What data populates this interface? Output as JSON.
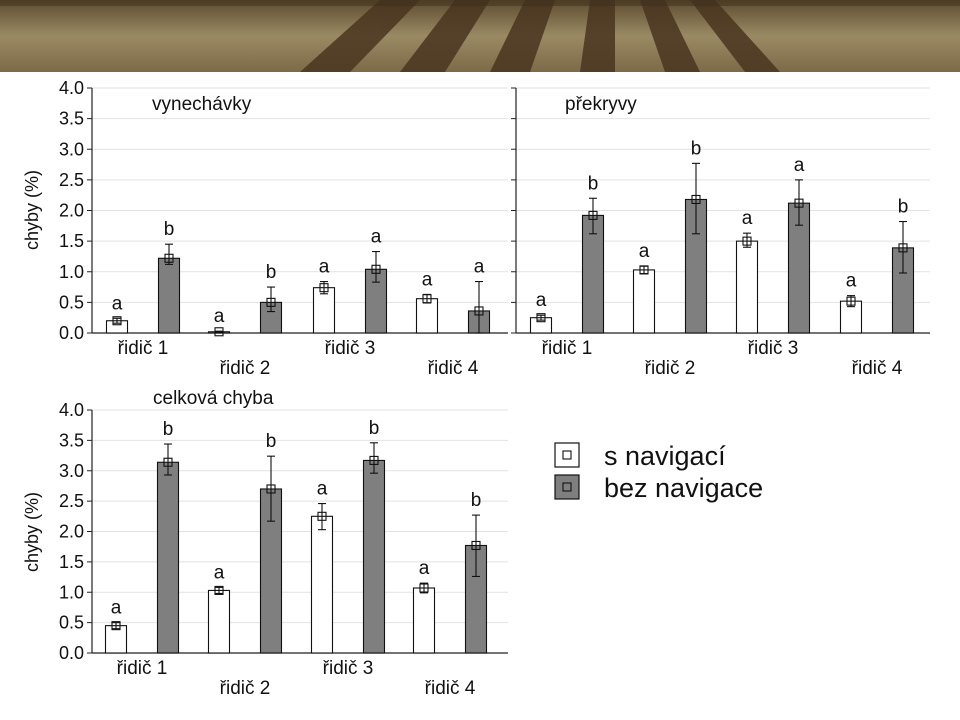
{
  "colors": {
    "with_nav": "#ffffff",
    "without_nav": "#7f7f7f",
    "axis": "#222222",
    "grid": "#e2e2e2",
    "banner_sky": "#8c7a55",
    "banner_field": "#6b4f2c"
  },
  "legend": {
    "with_nav": "s navigací",
    "without_nav": "bez navigace",
    "marker_icon": "square-marker-icon"
  },
  "chart_data": [
    {
      "type": "bar",
      "title": "vynechávky",
      "xlabel": "",
      "ylabel": "chyby (%)",
      "ylim": [
        0,
        4
      ],
      "yticks": [
        "0.0",
        "0.5",
        "1.0",
        "1.5",
        "2.0",
        "2.5",
        "3.0",
        "3.5",
        "4.0"
      ],
      "categories": [
        "řidič 1",
        "řidič 2",
        "řidič 3",
        "řidič 4"
      ],
      "grid": true,
      "series": [
        {
          "name": "s navigací",
          "values": [
            0.2,
            0.02,
            0.74,
            0.56
          ],
          "err_low": [
            0.16,
            0.01,
            0.64,
            0.49
          ],
          "err_high": [
            0.24,
            0.03,
            0.84,
            0.63
          ],
          "labels": [
            "a",
            "a",
            "a",
            "a"
          ]
        },
        {
          "name": "bez navigace",
          "values": [
            1.22,
            0.5,
            1.04,
            0.36
          ],
          "err_low": [
            1.12,
            0.35,
            0.83,
            0.0
          ],
          "err_high": [
            1.45,
            0.75,
            1.33,
            0.84
          ],
          "labels": [
            "b",
            "b",
            "a",
            "a"
          ]
        }
      ]
    },
    {
      "type": "bar",
      "title": "překryvy",
      "xlabel": "",
      "ylabel": "",
      "ylim": [
        0,
        4
      ],
      "categories": [
        "řidič 1",
        "řidič 2",
        "řidič 3",
        "řidič 4"
      ],
      "grid": true,
      "series": [
        {
          "name": "s navigací",
          "values": [
            0.25,
            1.03,
            1.5,
            0.52
          ],
          "err_low": [
            0.21,
            0.97,
            1.4,
            0.43
          ],
          "err_high": [
            0.29,
            1.09,
            1.63,
            0.61
          ],
          "labels": [
            "a",
            "a",
            "a",
            "a"
          ]
        },
        {
          "name": "bez navigace",
          "values": [
            1.92,
            2.18,
            2.12,
            1.39
          ],
          "err_low": [
            1.62,
            1.62,
            1.76,
            0.98
          ],
          "err_high": [
            2.2,
            2.77,
            2.5,
            1.82
          ],
          "labels": [
            "b",
            "b",
            "a",
            "b"
          ]
        }
      ]
    },
    {
      "type": "bar",
      "title": "celková chyba",
      "xlabel": "",
      "ylabel": "chyby (%)",
      "ylim": [
        0,
        4
      ],
      "yticks": [
        "0.0",
        "0.5",
        "1.0",
        "1.5",
        "2.0",
        "2.5",
        "3.0",
        "3.5",
        "4.0"
      ],
      "categories": [
        "řidič 1",
        "řidič 2",
        "řidič 3",
        "řidič 4"
      ],
      "grid": true,
      "series": [
        {
          "name": "s navigací",
          "values": [
            0.45,
            1.03,
            2.25,
            1.07
          ],
          "err_low": [
            0.4,
            0.98,
            2.03,
            0.99
          ],
          "err_high": [
            0.5,
            1.08,
            2.46,
            1.15
          ],
          "labels": [
            "a",
            "a",
            "a",
            "a"
          ]
        },
        {
          "name": "bez navigace",
          "values": [
            3.14,
            2.7,
            3.17,
            1.77
          ],
          "err_low": [
            2.93,
            2.17,
            2.96,
            1.26
          ],
          "err_high": [
            3.44,
            3.24,
            3.46,
            2.27
          ],
          "labels": [
            "b",
            "b",
            "b",
            "b"
          ]
        }
      ]
    }
  ]
}
